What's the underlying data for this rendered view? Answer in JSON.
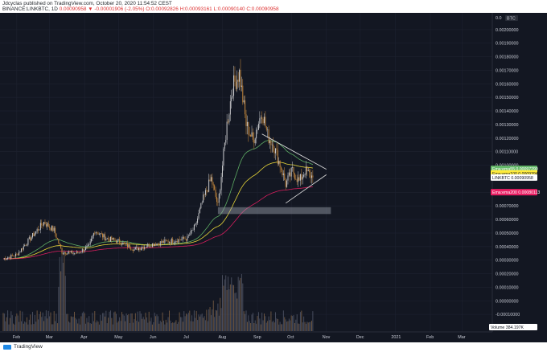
{
  "header": {
    "publish_line": "Jdcyclas published on TradingView.com, October 20, 2020 11:54:52 CEST",
    "symbol_line": "BINANCE:LINKBTC, 1D",
    "ohlc_change": "0.00090958 ▼ -0.00001906 (-2.05%)",
    "ohlc_o": "O:0.00092826",
    "ohlc_h": "H:0.00093161",
    "ohlc_l": "L:0.00090140",
    "ohlc_c": "C:0.00090958"
  },
  "footer": {
    "brand": "TradingView"
  },
  "chart_data": {
    "type": "candlestick",
    "symbol": "BINANCE:LINKBTC",
    "interval": "1D",
    "currency": "BTC",
    "y_axis": {
      "min": -0.0002,
      "max": 0.0021,
      "ticks": [
        "0.00200000",
        "0.00190000",
        "0.00180000",
        "0.00170000",
        "0.00160000",
        "0.00150000",
        "0.00140000",
        "0.00130000",
        "0.00120000",
        "0.00110000",
        "0.00100000",
        "0.00090000",
        "0.00080000",
        "0.00070000",
        "0.00060000",
        "0.00050000",
        "0.00040000",
        "0.00030000",
        "0.00020000",
        "0.00010000",
        "0.00000000",
        "-0.00010000"
      ],
      "top_label": "0.0",
      "unit_label": "BTC"
    },
    "x_axis": {
      "labels": [
        "Feb",
        "Mar",
        "Apr",
        "May",
        "Jun",
        "Jul",
        "Aug",
        "Sep",
        "Oct",
        "Nov",
        "Dec",
        "2021",
        "Feb",
        "Mar"
      ]
    },
    "price_path": [
      {
        "date": "2020-01-20",
        "close": 0.00031
      },
      {
        "date": "2020-02-01",
        "close": 0.00034
      },
      {
        "date": "2020-02-15",
        "close": 0.00048
      },
      {
        "date": "2020-02-25",
        "close": 0.00058
      },
      {
        "date": "2020-03-05",
        "close": 0.00052
      },
      {
        "date": "2020-03-12",
        "close": 0.00036
      },
      {
        "date": "2020-03-25",
        "close": 0.00035
      },
      {
        "date": "2020-04-05",
        "close": 0.0004
      },
      {
        "date": "2020-04-10",
        "close": 0.00052
      },
      {
        "date": "2020-04-20",
        "close": 0.00046
      },
      {
        "date": "2020-05-01",
        "close": 0.00044
      },
      {
        "date": "2020-05-15",
        "close": 0.00038
      },
      {
        "date": "2020-06-01",
        "close": 0.00042
      },
      {
        "date": "2020-06-15",
        "close": 0.00044
      },
      {
        "date": "2020-07-01",
        "close": 0.00046
      },
      {
        "date": "2020-07-08",
        "close": 0.00055
      },
      {
        "date": "2020-07-15",
        "close": 0.00075
      },
      {
        "date": "2020-07-22",
        "close": 0.0009
      },
      {
        "date": "2020-07-28",
        "close": 0.0007
      },
      {
        "date": "2020-08-05",
        "close": 0.0013
      },
      {
        "date": "2020-08-10",
        "close": 0.00158
      },
      {
        "date": "2020-08-16",
        "close": 0.00168
      },
      {
        "date": "2020-08-22",
        "close": 0.0013
      },
      {
        "date": "2020-08-28",
        "close": 0.00118
      },
      {
        "date": "2020-09-05",
        "close": 0.0014
      },
      {
        "date": "2020-09-10",
        "close": 0.00122
      },
      {
        "date": "2020-09-15",
        "close": 0.00115
      },
      {
        "date": "2020-09-22",
        "close": 0.00098
      },
      {
        "date": "2020-09-26",
        "close": 0.00086
      },
      {
        "date": "2020-10-02",
        "close": 0.00096
      },
      {
        "date": "2020-10-08",
        "close": 0.00088
      },
      {
        "date": "2020-10-13",
        "close": 0.00096
      },
      {
        "date": "2020-10-20",
        "close": 0.00090958
      }
    ],
    "volume_profile": "daily volume histogram along the bottom with spikes in March and August",
    "indicators": [
      {
        "name": "Ema:ema55",
        "value": "0.00097290",
        "color": "#66bb6a"
      },
      {
        "name": "Ema:ema100",
        "value": "0.00093945",
        "color": "#ffeb3b"
      },
      {
        "name": "LINKBTC",
        "value": "0.00090958",
        "color": "#ffffff"
      },
      {
        "name": "Ema:ema200",
        "value": "0.00080113",
        "color": "#e91e63"
      }
    ],
    "volume_label": "Volume",
    "volume_value": "384.197K",
    "annotations": [
      {
        "type": "triangle",
        "description": "symmetrical triangle from Sept to Oct"
      },
      {
        "type": "support_zone",
        "level": 0.00066
      }
    ]
  }
}
